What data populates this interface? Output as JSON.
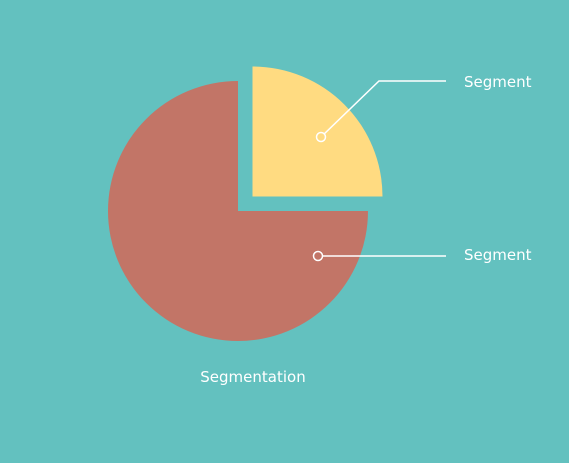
{
  "colors": {
    "background": "#63c1bf",
    "slice_large": "#c27567",
    "slice_small": "#ffdb81",
    "callout": "#ffffff"
  },
  "chart_data": {
    "type": "pie",
    "title": "Segmentation",
    "exploded_slice_index": 1,
    "slices": [
      {
        "label": "Segment",
        "value": 75,
        "color": "#c27567"
      },
      {
        "label": "Segment",
        "value": 25,
        "color": "#ffdb81"
      }
    ]
  }
}
